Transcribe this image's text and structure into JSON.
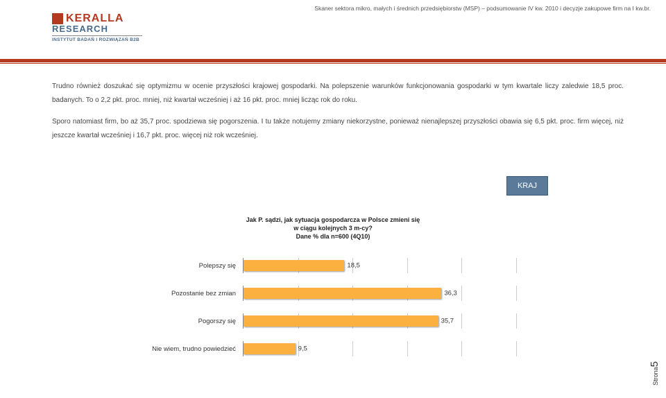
{
  "header": {
    "text": "Skaner sektora mikro, małych i średnich przedsiębiorstw (MSP) – podsumowanie IV kw. 2010 i decyzje zakupowe firm na I kw.br."
  },
  "logo": {
    "name1": "KERALLA",
    "name2": "RESEARCH",
    "subtitle": "INSTYTUT BADAŃ I ROZWIĄZAŃ B2B"
  },
  "body": {
    "p1": "Trudno również doszukać się optymizmu w ocenie przyszłości krajowej gospodarki. Na polepszenie warunków funkcjonowania gospodarki w tym kwartale liczy zaledwie 18,5 proc. badanych. To o 2,2 pkt. proc. mniej, niż kwartał wcześniej i aż 16 pkt. proc. mniej licząc rok do roku.",
    "p2": "Sporo natomiast firm, bo aż 35,7 proc. spodziewa się pogorszenia. I tu także notujemy zmiany niekorzystne, ponieważ nienajlepszej przyszłości obawia się 6,5 pkt. proc. firm więcej, niż jeszcze kwartał wcześniej i 16,7 pkt. proc. więcej niż rok wcześniej."
  },
  "kraj_label": "KRAJ",
  "chart": {
    "type": "bar",
    "title_line1": "Jak P. sądzi, jak sytuacja gospodarcza w Polsce zmieni się",
    "title_line2": "w ciągu kolejnych 3 m-cy?",
    "title_line3": "Dane % dla n=600 (4Q10)",
    "xmax": 50,
    "bar_color": "#fbb040",
    "grid_color": "#cccccc",
    "axis_color": "#888888",
    "background_color": "#ffffff",
    "label_fontsize": 9.5,
    "title_fontsize": 9,
    "categories": [
      {
        "label": "Polepszy się",
        "value": 18.5,
        "value_text": "18,5"
      },
      {
        "label": "Pozostanie bez zmian",
        "value": 36.3,
        "value_text": "36,3"
      },
      {
        "label": "Pogorszy się",
        "value": 35.7,
        "value_text": "35,7"
      },
      {
        "label": "Nie wiem, trudno powiedzieć",
        "value": 9.5,
        "value_text": "9,5"
      }
    ],
    "ticks": [
      0,
      10,
      20,
      30,
      40,
      50
    ]
  },
  "page": {
    "label": "Strona",
    "number": "5"
  }
}
